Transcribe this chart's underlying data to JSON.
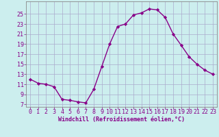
{
  "x": [
    0,
    1,
    2,
    3,
    4,
    5,
    6,
    7,
    8,
    9,
    10,
    11,
    12,
    13,
    14,
    15,
    16,
    17,
    18,
    19,
    20,
    21,
    22,
    23
  ],
  "y": [
    12.0,
    11.2,
    11.0,
    10.5,
    8.0,
    7.8,
    7.5,
    7.3,
    10.0,
    14.5,
    19.0,
    22.5,
    23.0,
    24.8,
    25.2,
    26.0,
    25.8,
    24.3,
    21.0,
    18.8,
    16.5,
    15.0,
    13.8,
    13.0
  ],
  "line_color": "#880088",
  "marker": "D",
  "markersize": 2.2,
  "linewidth": 1.0,
  "bg_color": "#cceeee",
  "grid_color": "#aaaacc",
  "xlabel": "Windchill (Refroidissement éolien,°C)",
  "xlabel_color": "#880088",
  "tick_color": "#880088",
  "ylabel_ticks": [
    7,
    9,
    11,
    13,
    15,
    17,
    19,
    21,
    23,
    25
  ],
  "xlim": [
    -0.5,
    23.5
  ],
  "ylim": [
    6.5,
    27.5
  ],
  "xticks": [
    0,
    1,
    2,
    3,
    4,
    5,
    6,
    7,
    8,
    9,
    10,
    11,
    12,
    13,
    14,
    15,
    16,
    17,
    18,
    19,
    20,
    21,
    22,
    23
  ],
  "xlabel_fontsize": 6.0,
  "tick_fontsize": 6.0
}
